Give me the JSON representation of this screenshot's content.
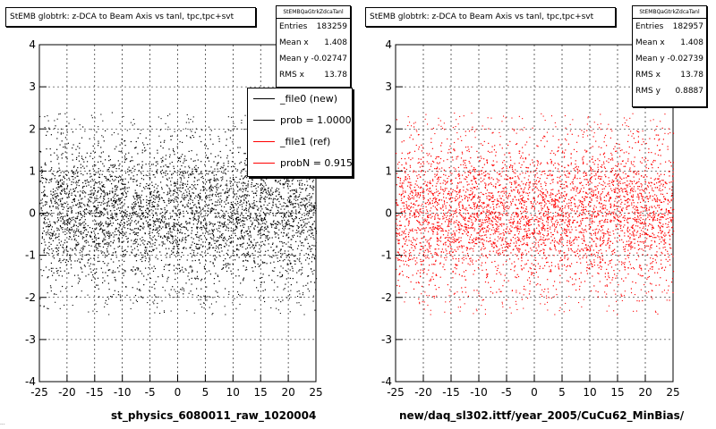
{
  "chart_data": [
    {
      "type": "scatter",
      "title": "StEMB globtrk: z-DCA to Beam Axis vs tanl, tpc,tpc+svt",
      "xlim": [
        -25,
        25
      ],
      "ylim": [
        -4,
        4
      ],
      "x_ticks": [
        "-25",
        "-20",
        "-15",
        "-10",
        "-5",
        "0",
        "5",
        "10",
        "15",
        "20",
        "25"
      ],
      "y_ticks": [
        "-4",
        "-3",
        "-2",
        "-1",
        "0",
        "1",
        "2",
        "3",
        "4"
      ],
      "grid": true,
      "xlabel": "st_physics_6080011_raw_1020004",
      "ylabel": "",
      "marker_color": "#000000",
      "series": [
        {
          "name": "_file0 (new)",
          "x_range": [
            -25,
            25
          ],
          "y_range": [
            -2.1,
            2.1
          ],
          "dense_band": [
            -1.5,
            1.5
          ]
        }
      ],
      "stats": {
        "name": "StEMBQaGtrkZdcaTanl",
        "rows": [
          {
            "label": "Entries",
            "value": "183259"
          },
          {
            "label": "Mean x",
            "value": "1.408"
          },
          {
            "label": "Mean y",
            "value": "-0.02747"
          },
          {
            "label": "RMS x",
            "value": "13.78"
          }
        ]
      },
      "legend": {
        "placement": "top-right",
        "entries": [
          {
            "label": "_file0 (new)",
            "color": "#000000"
          },
          {
            "label": "prob = 1.000000",
            "color": "#000000"
          },
          {
            "label": "_file1 (ref)",
            "color": "#ff0000"
          },
          {
            "label": "probN = 0.915300",
            "color": "#ff0000"
          }
        ]
      }
    },
    {
      "type": "scatter",
      "title": "StEMB globtrk: z-DCA to Beam Axis vs tanl, tpc,tpc+svt",
      "xlim": [
        -25,
        25
      ],
      "ylim": [
        -4,
        4
      ],
      "x_ticks": [
        "-25",
        "-20",
        "-15",
        "-10",
        "-5",
        "0",
        "5",
        "10",
        "15",
        "20",
        "25"
      ],
      "y_ticks": [
        "-4",
        "-3",
        "-2",
        "-1",
        "0",
        "1",
        "2",
        "3",
        "4"
      ],
      "grid": true,
      "xlabel": "new/daq_sl302.ittf/year_2005/CuCu62_MinBias/",
      "ylabel": "",
      "marker_color": "#ff0000",
      "series": [
        {
          "name": "_file1 (ref)",
          "x_range": [
            -25,
            25
          ],
          "y_range": [
            -2.1,
            2.1
          ],
          "dense_band": [
            -1.5,
            1.5
          ]
        }
      ],
      "stats": {
        "name": "StEMBQaGtrkZdcaTanl",
        "rows": [
          {
            "label": "Entries",
            "value": "182957"
          },
          {
            "label": "Mean x",
            "value": "1.408"
          },
          {
            "label": "Mean y",
            "value": "-0.02739"
          },
          {
            "label": "RMS x",
            "value": "13.78"
          },
          {
            "label": "RMS y",
            "value": "0.8887"
          }
        ]
      }
    }
  ],
  "footer_note": "..."
}
